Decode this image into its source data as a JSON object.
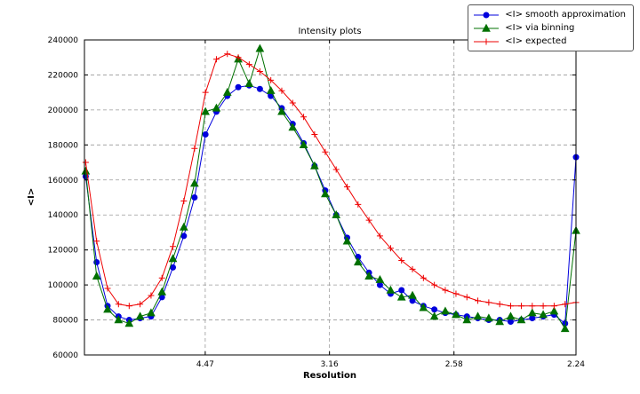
{
  "figure": {
    "background": "#ffffff"
  },
  "chart_data": {
    "type": "line",
    "title": "Intensity plots",
    "xlabel": "Resolution",
    "ylabel": "<I>",
    "grid": true,
    "legend_position": "top-right",
    "x_scale": "linear in 1/d^2 (x values are 1/d^2, ticks labeled in resolution d)",
    "x_range": [
      0.0015,
      0.1993
    ],
    "y_range": [
      60000,
      240000
    ],
    "x_ticks": [
      {
        "label": "4.47",
        "q": 0.0501
      },
      {
        "label": "3.16",
        "q": 0.1001
      },
      {
        "label": "2.58",
        "q": 0.1502
      },
      {
        "label": "2.24",
        "q": 0.1993
      }
    ],
    "y_ticks": [
      60000,
      80000,
      100000,
      120000,
      140000,
      160000,
      180000,
      200000,
      220000,
      240000
    ],
    "x": [
      0.002,
      0.0064,
      0.0108,
      0.0152,
      0.0195,
      0.0239,
      0.0283,
      0.0327,
      0.0371,
      0.0415,
      0.0458,
      0.0502,
      0.0546,
      0.059,
      0.0634,
      0.0678,
      0.0721,
      0.0765,
      0.0809,
      0.0853,
      0.0897,
      0.0941,
      0.0984,
      0.1028,
      0.1072,
      0.1116,
      0.116,
      0.1204,
      0.1247,
      0.1291,
      0.1335,
      0.1379,
      0.1423,
      0.1467,
      0.151,
      0.1554,
      0.1598,
      0.1642,
      0.1686,
      0.173,
      0.1773,
      0.1817,
      0.1861,
      0.1905,
      0.1949,
      0.1993
    ],
    "series": [
      {
        "name": "<I> smooth approximation",
        "color": "#0000dd",
        "marker": "circle",
        "y": [
          162000,
          113000,
          88000,
          82000,
          80000,
          81000,
          82000,
          93000,
          110000,
          128000,
          150000,
          186000,
          199000,
          208000,
          213000,
          214000,
          212000,
          208000,
          201000,
          192000,
          181000,
          168000,
          154000,
          140000,
          127000,
          116000,
          107000,
          100000,
          95000,
          97000,
          91000,
          88000,
          86000,
          84000,
          83000,
          82000,
          81000,
          80000,
          80000,
          79000,
          80000,
          81000,
          82000,
          83000,
          78000,
          173000
        ]
      },
      {
        "name": "<I> via binning",
        "color": "#007000",
        "marker": "triangle",
        "y": [
          165000,
          105000,
          86000,
          80000,
          78000,
          82000,
          84000,
          96000,
          115000,
          133000,
          158000,
          199000,
          201000,
          210000,
          229000,
          215000,
          235000,
          211000,
          199000,
          190000,
          180000,
          168000,
          152000,
          140000,
          125000,
          113000,
          105000,
          103000,
          97000,
          93000,
          94000,
          87000,
          82000,
          85000,
          83000,
          80000,
          82000,
          81000,
          79000,
          82000,
          80000,
          84000,
          83000,
          85000,
          75000,
          131000
        ]
      },
      {
        "name": "<I> expected",
        "color": "#ee0000",
        "marker": "plus",
        "y": [
          170000,
          125000,
          98000,
          89000,
          88000,
          89000,
          94000,
          104000,
          122000,
          148000,
          178000,
          210000,
          229000,
          232000,
          230000,
          226000,
          222000,
          217000,
          211000,
          204000,
          196000,
          186000,
          176000,
          166000,
          156000,
          146000,
          137000,
          128000,
          121000,
          114000,
          109000,
          104000,
          100000,
          97000,
          95000,
          93000,
          91000,
          90000,
          89000,
          88000,
          88000,
          88000,
          88000,
          88000,
          89000,
          90000
        ]
      }
    ]
  }
}
